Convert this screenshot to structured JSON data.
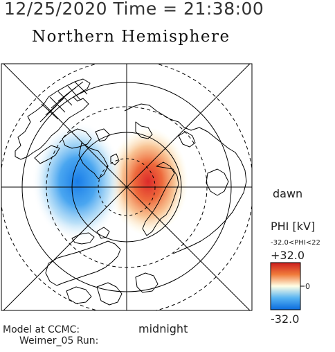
{
  "header": {
    "datetime": "12/25/2020 Time = 21:38:00",
    "hemisphere": "Northern Hemisphere"
  },
  "map": {
    "orientation_labels": {
      "dawn": "dawn",
      "midnight": "midnight"
    },
    "credit_line1": "Model at CCMC:",
    "credit_line2": "Weimer_05 Run:",
    "potential_cells": [
      {
        "name": "negative",
        "color": "#3f8ff0"
      },
      {
        "name": "positive",
        "color": "#e8453a"
      }
    ]
  },
  "colorbar": {
    "title": "PHI [kV]",
    "range_text": "-32.0<PHI<22",
    "max_label": "+32.0",
    "mid_label": "0",
    "min_label": "-32.0",
    "colors": {
      "max": "#cc1e1e",
      "high": "#f07a3a",
      "mid": "#ffffe6",
      "low": "#58b4f2",
      "min": "#0a6bde"
    }
  }
}
